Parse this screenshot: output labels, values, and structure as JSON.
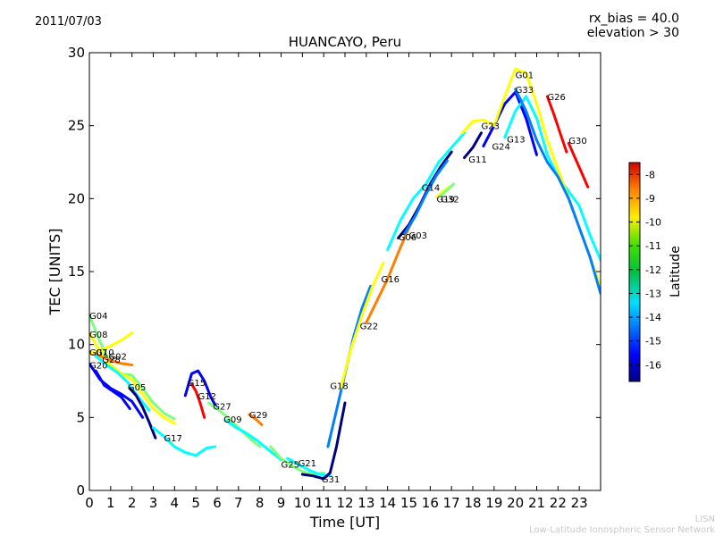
{
  "header": {
    "date": "2011/07/03",
    "rx_bias": "rx_bias = 40.0",
    "elevation": "elevation > 30"
  },
  "footer": {
    "org_short": "LISN",
    "org_full": "Low-Latitude Ionospheric Sensor Network"
  },
  "chart_data": {
    "type": "line",
    "title": "HUANCAYO, Peru",
    "xlabel": "Time [UT]",
    "ylabel": "TEC [UNITS]",
    "xlim": [
      0,
      24
    ],
    "ylim": [
      0,
      30
    ],
    "xticks": [
      0,
      1,
      2,
      3,
      4,
      5,
      6,
      7,
      8,
      9,
      10,
      11,
      12,
      13,
      14,
      15,
      16,
      17,
      18,
      19,
      20,
      21,
      22,
      23
    ],
    "yticks": [
      0,
      5,
      10,
      15,
      20,
      25,
      30
    ],
    "colorbar": {
      "label": "Latitude",
      "range": [
        -16.7,
        -7.5
      ],
      "ticks": [
        -16,
        -15,
        -14,
        -13,
        -12,
        -11,
        -10,
        -9,
        -8
      ],
      "colormap": [
        "#00007f",
        "#0000ff",
        "#007fff",
        "#00ffff",
        "#7fff7f",
        "#ffff00",
        "#ff7f00",
        "#ff0000",
        "#7f0000"
      ]
    },
    "series": [
      {
        "name": "G04",
        "label_at": [
          0.0,
          12.0
        ],
        "lat": -12.2,
        "x": [
          0,
          0.5,
          1,
          1.5,
          2,
          2.5,
          3,
          3.5,
          4
        ],
        "y": [
          12.0,
          10.2,
          8.6,
          8.0,
          7.9,
          7.0,
          6.0,
          5.3,
          4.9
        ]
      },
      {
        "name": "G08",
        "label_at": [
          0.0,
          10.7
        ],
        "lat": -11.4,
        "x": [
          0,
          0.5,
          1,
          1.5,
          2,
          2.5,
          3,
          3.5,
          4
        ],
        "y": [
          10.8,
          9.5,
          8.6,
          8.0,
          7.6,
          6.6,
          5.6,
          5.0,
          4.6
        ]
      },
      {
        "name": "G07",
        "label_at": [
          0.0,
          9.5
        ],
        "lat": -9.7,
        "x": [
          0,
          0.5,
          1,
          1.5,
          2
        ],
        "y": [
          9.5,
          9.2,
          8.9,
          8.7,
          8.6
        ]
      },
      {
        "name": "G10",
        "label_at": [
          0.3,
          9.5
        ],
        "lat": -11.3,
        "x": [
          0,
          0.5,
          1,
          1.5,
          2
        ],
        "y": [
          9.4,
          9.6,
          9.9,
          10.3,
          10.8
        ]
      },
      {
        "name": "G02",
        "label_at": [
          0.9,
          9.2
        ],
        "lat": -13.5,
        "x": [
          0.3,
          0.8,
          1.3,
          1.8,
          2.3,
          2.8
        ],
        "y": [
          9.2,
          8.6,
          8.1,
          7.4,
          6.4,
          5.5
        ]
      },
      {
        "name": "G28",
        "label_at": [
          0.6,
          9.0
        ],
        "lat": -15.6,
        "x": [
          0.3,
          0.7,
          1.1,
          1.5,
          1.9
        ],
        "y": [
          8.2,
          7.2,
          6.8,
          6.4,
          5.6
        ]
      },
      {
        "name": "G20",
        "label_at": [
          0.0,
          8.6
        ],
        "lat": -15.2,
        "x": [
          0,
          0.5,
          1,
          1.5,
          2,
          2.5
        ],
        "y": [
          8.7,
          7.6,
          7.0,
          6.6,
          6.1,
          5.0
        ]
      },
      {
        "name": "G05",
        "label_at": [
          1.8,
          7.1
        ],
        "lat": -16.4,
        "x": [
          1.9,
          2.2,
          2.5,
          2.8,
          3.1
        ],
        "y": [
          7.0,
          6.5,
          5.7,
          4.7,
          3.6
        ]
      },
      {
        "name": "G17",
        "label_at": [
          3.5,
          3.6
        ],
        "lat": -13.3,
        "x": [
          3.0,
          3.5,
          4.0,
          4.5,
          5.0,
          5.5,
          5.9
        ],
        "y": [
          4.3,
          3.7,
          3.0,
          2.6,
          2.4,
          2.9,
          3.0
        ]
      },
      {
        "name": "G15",
        "label_at": [
          4.6,
          7.4
        ],
        "lat": -15.4,
        "x": [
          4.5,
          4.8,
          5.1,
          5.4,
          5.7,
          6.0
        ],
        "y": [
          6.5,
          8.0,
          8.2,
          7.5,
          6.4,
          5.6
        ]
      },
      {
        "name": "G12",
        "label_at": [
          5.1,
          6.5
        ],
        "lat": -8.9,
        "x": [
          4.8,
          5.0,
          5.2,
          5.4
        ],
        "y": [
          7.3,
          6.8,
          6.0,
          5.0
        ]
      },
      {
        "name": "G27",
        "label_at": [
          5.8,
          5.8
        ],
        "lat": -12.6,
        "x": [
          5.6,
          6.0,
          6.5,
          7.0,
          7.5,
          8.0
        ],
        "y": [
          6.0,
          5.6,
          5.0,
          4.3,
          3.6,
          3.0
        ]
      },
      {
        "name": "G09",
        "label_at": [
          6.3,
          4.9
        ],
        "lat": -13.3,
        "x": [
          6.4,
          6.9,
          7.4,
          7.9,
          8.4,
          9.0
        ],
        "y": [
          4.8,
          4.3,
          3.9,
          3.4,
          2.8,
          2.1
        ]
      },
      {
        "name": "G29",
        "label_at": [
          7.5,
          5.2
        ],
        "lat": -10.3,
        "x": [
          7.5,
          7.8,
          8.1
        ],
        "y": [
          5.2,
          4.9,
          4.5
        ]
      },
      {
        "name": "G25",
        "label_at": [
          9.0,
          1.8
        ],
        "lat": -12.5,
        "x": [
          8.5,
          9.0,
          9.5,
          10.0,
          10.5,
          11.0
        ],
        "y": [
          3.0,
          2.2,
          1.7,
          1.3,
          1.1,
          1.2
        ]
      },
      {
        "name": "G21",
        "label_at": [
          9.8,
          1.9
        ],
        "lat": -13.8,
        "x": [
          9.3,
          9.8,
          10.3,
          10.8,
          11.3
        ],
        "y": [
          2.2,
          1.8,
          1.4,
          1.1,
          1.0
        ]
      },
      {
        "name": "G31",
        "label_at": [
          10.9,
          0.8
        ],
        "lat": -16.2,
        "x": [
          10.0,
          10.5,
          11.0,
          11.3,
          11.6,
          12.0
        ],
        "y": [
          1.1,
          1.0,
          0.8,
          1.2,
          3.0,
          6.0
        ]
      },
      {
        "name": "G18",
        "label_at": [
          11.3,
          7.2
        ],
        "lat": -14.4,
        "x": [
          11.2,
          11.6,
          12.0,
          12.4,
          12.8,
          13.2
        ],
        "y": [
          3.0,
          5.5,
          8.0,
          10.5,
          12.5,
          14.0
        ]
      },
      {
        "name": "G22",
        "label_at": [
          12.7,
          11.3
        ],
        "lat": -10.8,
        "x": [
          11.8,
          12.3,
          12.8,
          13.3,
          13.8
        ],
        "y": [
          7.0,
          9.8,
          12.0,
          14.0,
          15.6
        ]
      },
      {
        "name": "G16",
        "label_at": [
          13.7,
          14.5
        ],
        "lat": -9.8,
        "x": [
          13.0,
          13.5,
          14.0,
          14.5,
          15.0,
          15.5
        ],
        "y": [
          11.5,
          13.0,
          14.5,
          16.3,
          18.0,
          19.5
        ]
      },
      {
        "name": "G06",
        "label_at": [
          14.5,
          17.4
        ],
        "lat": -16.3,
        "x": [
          14.5,
          15.0,
          15.5,
          16.0,
          16.5,
          17.0
        ],
        "y": [
          17.3,
          18.2,
          19.5,
          21.0,
          22.2,
          23.2
        ]
      },
      {
        "name": "G03",
        "label_at": [
          15.0,
          17.5
        ],
        "lat": -14.7,
        "x": [
          14.8,
          15.3,
          15.8,
          16.3,
          16.8
        ],
        "y": [
          17.6,
          18.8,
          20.3,
          21.6,
          22.6
        ]
      },
      {
        "name": "G14",
        "label_at": [
          15.6,
          20.8
        ],
        "lat": -12.9,
        "x": [
          14.0,
          14.6,
          15.2,
          15.8,
          16.4,
          17.0,
          17.6
        ],
        "y": [
          16.5,
          18.5,
          20.0,
          21.0,
          22.5,
          23.5,
          24.5
        ]
      },
      {
        "name": "G19",
        "label_at": [
          16.3,
          20.0
        ],
        "lat": -10.4,
        "x": [
          16.3,
          16.6,
          16.9
        ],
        "y": [
          20.1,
          20.5,
          20.8
        ]
      },
      {
        "name": "G32",
        "label_at": [
          16.5,
          20.0
        ],
        "lat": -12.4,
        "x": [
          16.5,
          16.8,
          17.1
        ],
        "y": [
          20.2,
          20.6,
          21.0
        ]
      },
      {
        "name": "G11",
        "label_at": [
          17.8,
          22.7
        ],
        "lat": -16.5,
        "x": [
          17.6,
          18.0,
          18.4
        ],
        "y": [
          22.8,
          23.5,
          24.5
        ]
      },
      {
        "name": "G23",
        "label_at": [
          18.4,
          25.0
        ],
        "lat": -10.6,
        "x": [
          17.5,
          18.0,
          18.5,
          19.0
        ],
        "y": [
          24.5,
          25.3,
          25.4,
          25.0
        ]
      },
      {
        "name": "G24",
        "label_at": [
          18.9,
          23.6
        ],
        "lat": -15.7,
        "x": [
          18.5,
          19.0,
          19.5,
          20.0,
          20.5,
          21.0
        ],
        "y": [
          23.6,
          25.0,
          26.5,
          27.3,
          25.5,
          23.0
        ]
      },
      {
        "name": "G13",
        "label_at": [
          19.6,
          24.1
        ],
        "lat": -12.8,
        "x": [
          19.5,
          20.0,
          20.5,
          21.0,
          21.5,
          22.0,
          22.5,
          23.0,
          23.5,
          24.0
        ],
        "y": [
          24.2,
          26.0,
          27.0,
          25.5,
          23.0,
          21.5,
          20.5,
          19.5,
          17.5,
          15.8
        ]
      },
      {
        "name": "G01",
        "label_at": [
          20.0,
          28.5
        ],
        "lat": -10.9,
        "x": [
          19.0,
          19.5,
          20.0,
          20.5,
          21.0,
          21.5,
          22.0,
          22.5,
          23.0,
          23.5,
          24.0
        ],
        "y": [
          25.0,
          27.0,
          28.9,
          28.6,
          26.5,
          24.0,
          22.0,
          20.0,
          18.0,
          16.0,
          14.0
        ]
      },
      {
        "name": "G26",
        "label_at": [
          21.5,
          27.0
        ],
        "lat": -8.8,
        "x": [
          21.5,
          21.8,
          22.1,
          22.4
        ],
        "y": [
          27.0,
          25.8,
          24.5,
          23.2
        ]
      },
      {
        "name": "G30",
        "label_at": [
          22.5,
          24.0
        ],
        "lat": -9.0,
        "x": [
          22.5,
          22.8,
          23.1,
          23.4
        ],
        "y": [
          23.8,
          22.8,
          21.8,
          20.8
        ]
      },
      {
        "name": "G33",
        "label_at": [
          20.0,
          27.5
        ],
        "lat": -14.6,
        "x": [
          20.0,
          20.5,
          21.0,
          21.5,
          22.0,
          22.5,
          23.0,
          23.5,
          24.0
        ],
        "y": [
          27.5,
          26.0,
          24.0,
          22.5,
          21.5,
          20.0,
          18.0,
          16.0,
          13.5
        ]
      }
    ]
  }
}
